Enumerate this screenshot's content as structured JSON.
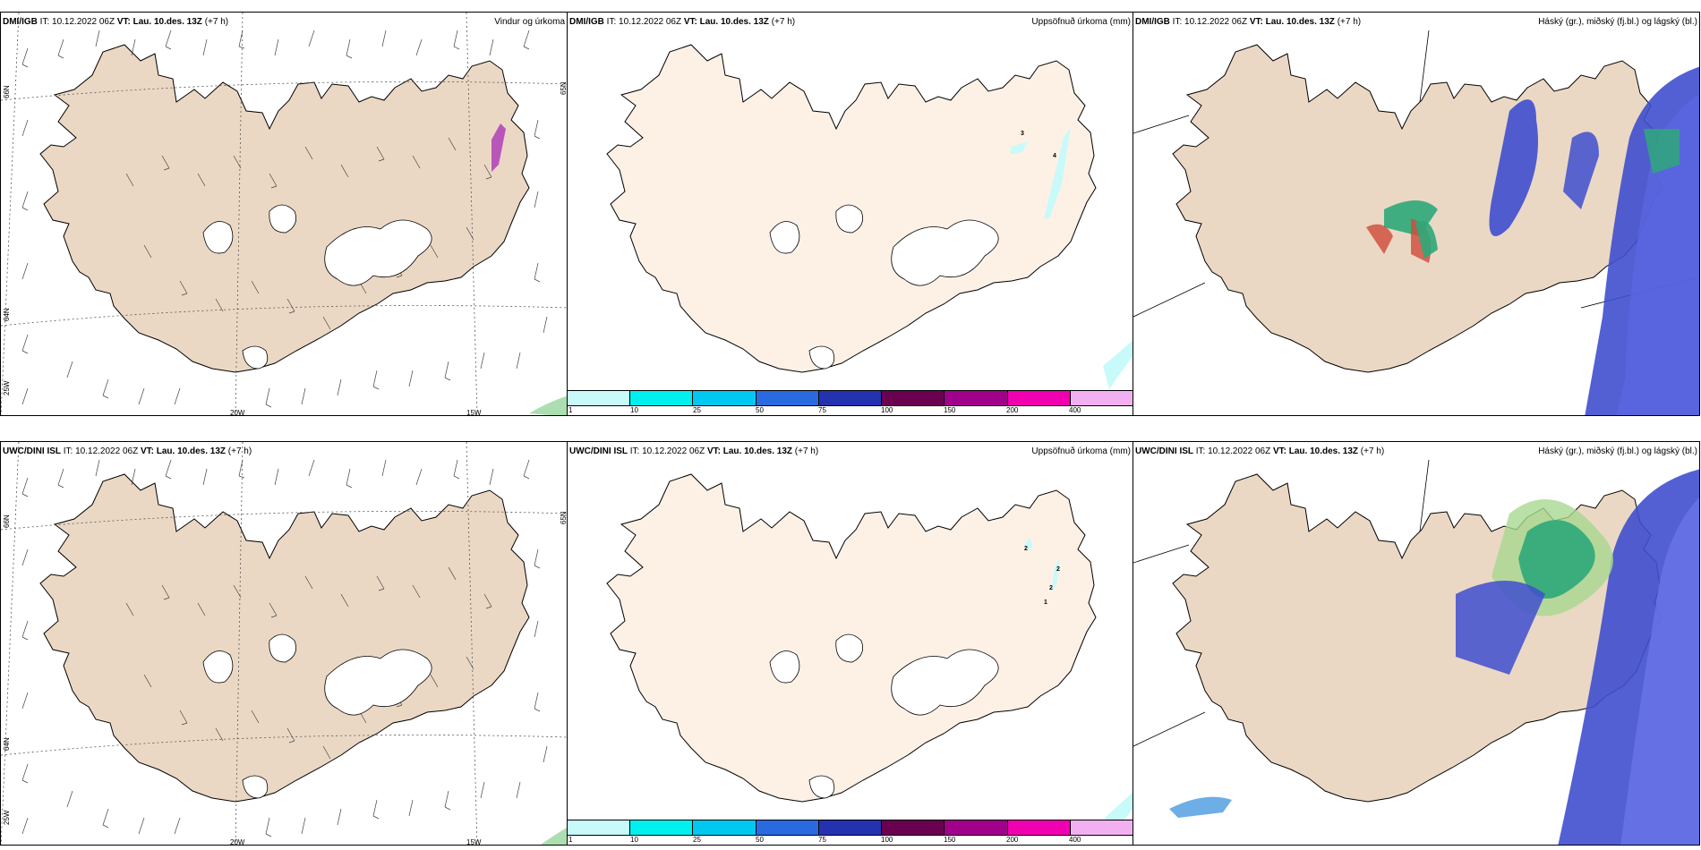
{
  "panels": [
    {
      "id": "p1",
      "source": "DMI/IGB",
      "it_label": "IT:",
      "it": "10.12.2022 06Z",
      "vt_label": "VT:",
      "vt": "Lau. 10.des. 13Z",
      "lead": "(+7 h)",
      "title": "Vindur og úrkoma",
      "lon_labels": [
        "20W",
        "15W"
      ],
      "lat_labels": [
        "66N",
        "64N",
        "25W",
        "65N"
      ]
    },
    {
      "id": "p2",
      "source": "DMI/IGB",
      "it_label": "IT:",
      "it": "10.12.2022 06Z",
      "vt_label": "VT:",
      "vt": "Lau. 10.des. 13Z",
      "lead": "(+7 h)",
      "title": "Uppsöfnuð úrkoma (mm)",
      "precip_labels": [
        "3",
        "4"
      ]
    },
    {
      "id": "p3",
      "source": "DMI/IGB",
      "it_label": "IT:",
      "it": "10.12.2022 06Z",
      "vt_label": "VT:",
      "vt": "Lau. 10.des. 13Z",
      "lead": "(+7 h)",
      "title": "Háský (gr.), miðský (fj.bl.) og lágský (bl.)"
    },
    {
      "id": "p4",
      "source": "UWC/DINI ISL",
      "it_label": "IT:",
      "it": "10.12.2022 06Z",
      "vt_label": "VT:",
      "vt": "Lau. 10.des. 13Z",
      "lead": "(+7 h)",
      "title": "",
      "lon_labels": [
        "20W",
        "15W"
      ],
      "lat_labels": [
        "66N",
        "64N",
        "25W",
        "65N"
      ]
    },
    {
      "id": "p5",
      "source": "UWC/DINI ISL",
      "it_label": "IT:",
      "it": "10.12.2022 06Z",
      "vt_label": "VT:",
      "vt": "Lau. 10.des. 13Z",
      "lead": "(+7 h)",
      "title": "Uppsöfnuð úrkoma (mm)",
      "precip_labels": [
        "2",
        "2",
        "2",
        "1"
      ]
    },
    {
      "id": "p6",
      "source": "UWC/DINI ISL",
      "it_label": "IT:",
      "it": "10.12.2022 06Z",
      "vt_label": "VT:",
      "vt": "Lau. 10.des. 13Z",
      "lead": "(+7 h)",
      "title": "Háský (gr.), miðský (fj.bl.) og lágský (bl.)"
    }
  ],
  "colorbar": {
    "ticks": [
      "1",
      "10",
      "25",
      "50",
      "75",
      "100",
      "150",
      "200",
      "400"
    ],
    "colors": [
      "#c8fafa",
      "#00f0f0",
      "#00c8f0",
      "#2a6ae0",
      "#2432b0",
      "#6a0050",
      "#a0008a",
      "#f000b0",
      "#f2b0f0"
    ]
  },
  "colors": {
    "land": "#ebd8c4",
    "land_precip": "#fdf1e6",
    "glacier": "#ffffff",
    "low_cloud": "#3f4fcf",
    "mid_cloud": "#2ea87a",
    "high_cloud": "#d04a3a",
    "light_precip": "#c8fafa"
  }
}
